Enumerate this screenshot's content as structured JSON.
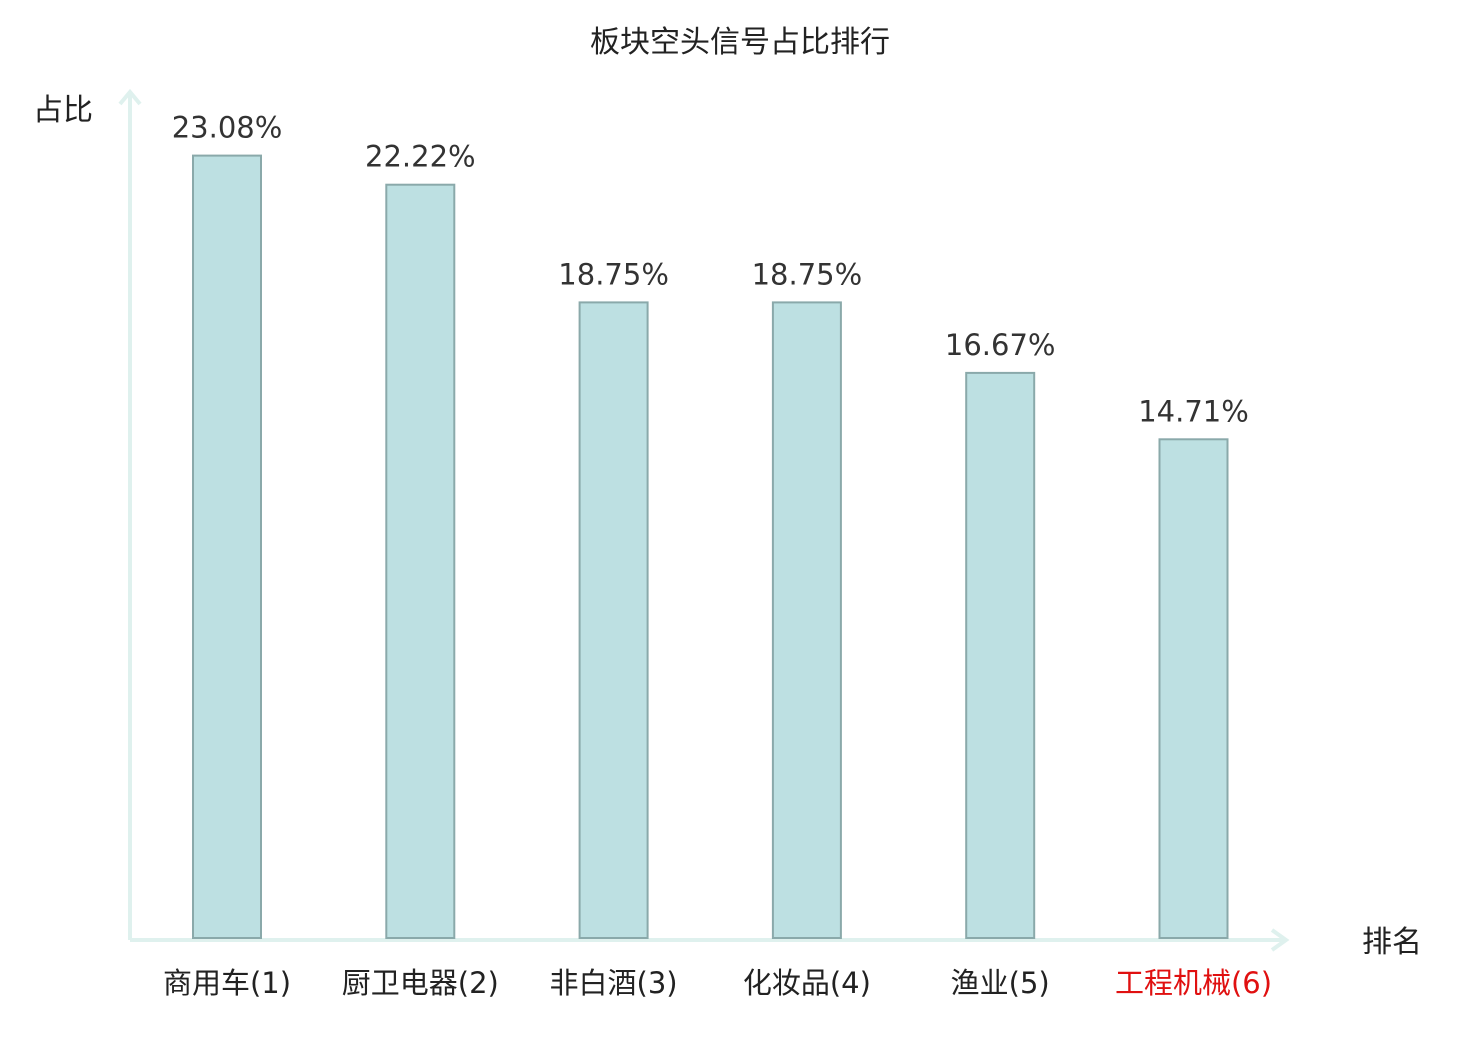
{
  "chart_data": {
    "type": "bar",
    "title": "板块空头信号占比排行",
    "ylabel": "占比",
    "xlabel": "排名",
    "categories": [
      "商用车(1)",
      "厨卫电器(2)",
      "非白酒(3)",
      "化妆品(4)",
      "渔业(5)",
      "工程机械(6)"
    ],
    "values": [
      23.08,
      22.22,
      18.75,
      18.75,
      16.67,
      14.71
    ],
    "value_labels": [
      "23.08%",
      "22.22%",
      "18.75%",
      "18.75%",
      "16.67%",
      "14.71%"
    ],
    "highlight_category": "工程机械(6)",
    "highlight_color": "#e01010",
    "bar_color": "#bde0e2",
    "bar_edge_color": "#8aa9aa",
    "axis_color": "#dff1ee",
    "grid": false
  }
}
